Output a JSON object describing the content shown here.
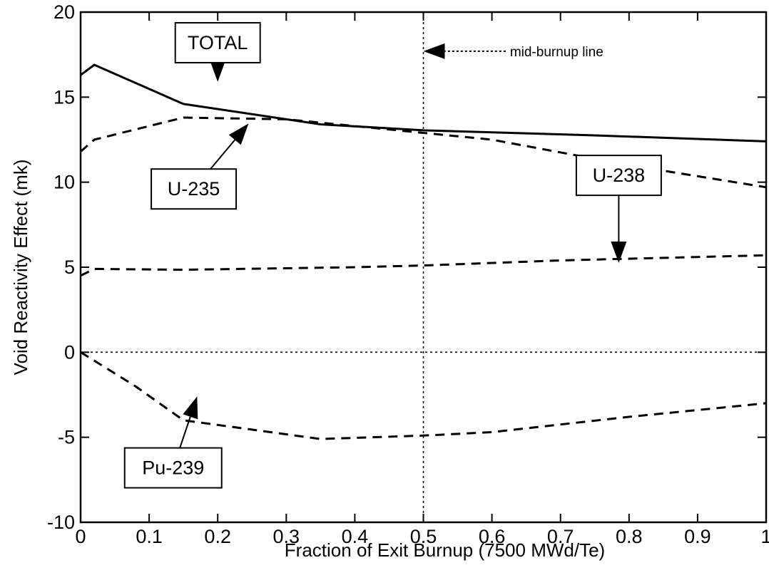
{
  "chart_data": {
    "type": "line",
    "title": "",
    "xlabel": "Fraction of Exit Burnup (7500 MWd/Te)",
    "ylabel": "Void Reactivity Effect (mk)",
    "xlim": [
      0,
      1
    ],
    "ylim": [
      -10,
      20
    ],
    "x_ticks": [
      0,
      0.1,
      0.2,
      0.3,
      0.4,
      0.5,
      0.6,
      0.7,
      0.8,
      0.9,
      1
    ],
    "y_ticks": [
      -10,
      -5,
      0,
      5,
      10,
      15,
      20
    ],
    "grid": false,
    "series": [
      {
        "name": "TOTAL",
        "style": "solid",
        "points": [
          [
            0,
            16.3
          ],
          [
            0.02,
            16.9
          ],
          [
            0.15,
            14.6
          ],
          [
            0.35,
            13.4
          ],
          [
            0.5,
            13.05
          ],
          [
            0.75,
            12.75
          ],
          [
            1.0,
            12.4
          ]
        ]
      },
      {
        "name": "U-235",
        "style": "dashed",
        "points": [
          [
            0,
            11.8
          ],
          [
            0.02,
            12.5
          ],
          [
            0.15,
            13.8
          ],
          [
            0.3,
            13.7
          ],
          [
            0.5,
            12.9
          ],
          [
            0.6,
            12.5
          ],
          [
            0.8,
            11.0
          ],
          [
            1.0,
            9.7
          ]
        ]
      },
      {
        "name": "U-238",
        "style": "dashed",
        "points": [
          [
            0,
            4.5
          ],
          [
            0.02,
            4.9
          ],
          [
            0.15,
            4.85
          ],
          [
            0.4,
            5.0
          ],
          [
            0.5,
            5.1
          ],
          [
            0.7,
            5.4
          ],
          [
            1.0,
            5.7
          ]
        ]
      },
      {
        "name": "Pu-239",
        "style": "dashed",
        "points": [
          [
            0,
            0
          ],
          [
            0.08,
            -2.0
          ],
          [
            0.15,
            -4.0
          ],
          [
            0.35,
            -5.1
          ],
          [
            0.5,
            -4.9
          ],
          [
            0.6,
            -4.7
          ],
          [
            0.8,
            -3.8
          ],
          [
            1.0,
            -3.0
          ]
        ]
      }
    ],
    "reference_lines": [
      {
        "orientation": "vertical",
        "value": 0.5,
        "style": "dotted",
        "label": "mid-burnup line"
      },
      {
        "orientation": "horizontal",
        "value": 0,
        "style": "dotted"
      }
    ],
    "annotations": [
      {
        "text": "TOTAL",
        "box": true,
        "at": [
          0.2,
          18.2
        ],
        "arrow_to": [
          0.2,
          15.9
        ]
      },
      {
        "text": "U-235",
        "box": true,
        "at": [
          0.165,
          9.6
        ],
        "arrow_to": [
          0.245,
          13.45
        ]
      },
      {
        "text": "U-238",
        "box": true,
        "at": [
          0.785,
          10.4
        ],
        "arrow_to": [
          0.785,
          5.25
        ]
      },
      {
        "text": "Pu-239",
        "box": true,
        "at": [
          0.135,
          -6.8
        ],
        "arrow_to": [
          0.17,
          -2.6
        ]
      },
      {
        "text": "mid-burnup line",
        "box": false,
        "at": [
          0.62,
          17.7
        ],
        "arrow_to": [
          0.5,
          17.7
        ]
      }
    ]
  }
}
